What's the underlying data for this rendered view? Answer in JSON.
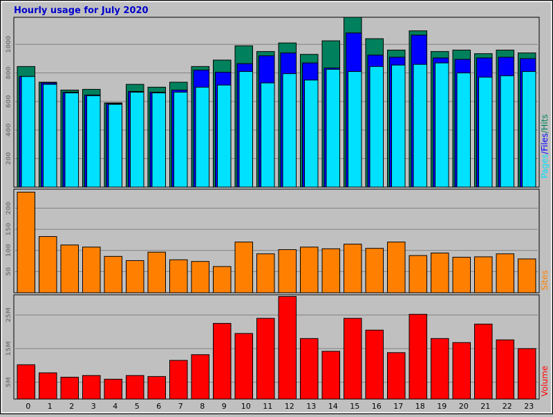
{
  "title": "Hourly usage for July 2020",
  "colors": {
    "background": "#c0c0c0",
    "title": "#0000cc",
    "hits": "#00805c",
    "files": "#0000ff",
    "pages": "#00e0ff",
    "sites": "#ff8000",
    "volume": "#ff0000",
    "grid": "#808080",
    "axis_text": "#808080"
  },
  "chart_data": [
    {
      "type": "bar",
      "panel": "pages-files-hits",
      "ylabel_parts": [
        "Pages",
        "/",
        "Files",
        "/",
        "Hits"
      ],
      "categories": [
        "0",
        "1",
        "2",
        "3",
        "4",
        "5",
        "6",
        "7",
        "8",
        "9",
        "10",
        "11",
        "12",
        "13",
        "14",
        "15",
        "16",
        "17",
        "18",
        "19",
        "20",
        "21",
        "22",
        "23"
      ],
      "y_ticks": [
        "200",
        "400",
        "600",
        "800",
        "1000"
      ],
      "ylim": [
        0,
        1190
      ],
      "grid": true,
      "series": [
        {
          "name": "Hits",
          "values": [
            845,
            735,
            680,
            685,
            590,
            720,
            700,
            735,
            845,
            890,
            990,
            950,
            1010,
            930,
            1025,
            1190,
            1040,
            960,
            1095,
            950,
            960,
            935,
            960,
            940
          ]
        },
        {
          "name": "Files",
          "values": [
            775,
            730,
            665,
            645,
            585,
            670,
            665,
            680,
            820,
            805,
            865,
            920,
            940,
            870,
            835,
            1080,
            925,
            910,
            1065,
            905,
            895,
            905,
            910,
            900
          ]
        },
        {
          "name": "Pages",
          "values": [
            775,
            720,
            660,
            640,
            580,
            665,
            660,
            665,
            700,
            715,
            810,
            730,
            795,
            750,
            825,
            810,
            845,
            855,
            860,
            870,
            800,
            770,
            780,
            810
          ]
        }
      ]
    },
    {
      "type": "bar",
      "panel": "sites",
      "ylabel": "Sites",
      "categories": [
        "0",
        "1",
        "2",
        "3",
        "4",
        "5",
        "6",
        "7",
        "8",
        "9",
        "10",
        "11",
        "12",
        "13",
        "14",
        "15",
        "16",
        "17",
        "18",
        "19",
        "20",
        "21",
        "22",
        "23"
      ],
      "y_ticks": [
        "50",
        "100",
        "150",
        "200"
      ],
      "ylim": [
        0,
        245
      ],
      "grid": true,
      "series": [
        {
          "name": "Sites",
          "values": [
            238,
            133,
            113,
            108,
            86,
            76,
            96,
            78,
            74,
            62,
            120,
            92,
            102,
            108,
            104,
            115,
            105,
            120,
            88,
            94,
            84,
            85,
            92,
            80
          ]
        }
      ]
    },
    {
      "type": "bar",
      "panel": "volume",
      "ylabel": "Volume",
      "categories": [
        "0",
        "1",
        "2",
        "3",
        "4",
        "5",
        "6",
        "7",
        "8",
        "9",
        "10",
        "11",
        "12",
        "13",
        "14",
        "15",
        "16",
        "17",
        "18",
        "19",
        "20",
        "21",
        "22",
        "23"
      ],
      "y_ticks": [
        "5M",
        "15M",
        "25M"
      ],
      "ylim": [
        0,
        31
      ],
      "grid": true,
      "series": [
        {
          "name": "Volume",
          "values": [
            10.2,
            7.8,
            6.5,
            7.0,
            5.9,
            7.0,
            6.7,
            11.5,
            13.2,
            22.5,
            19.5,
            24.0,
            30.5,
            18.0,
            14.2,
            24.0,
            20.5,
            13.8,
            25.2,
            18.0,
            16.8,
            22.3,
            17.6,
            15.0
          ]
        }
      ]
    }
  ]
}
